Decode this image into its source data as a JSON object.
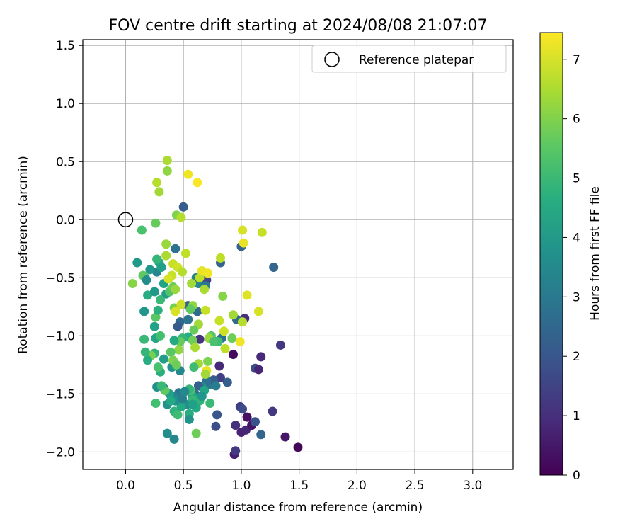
{
  "chart_data": {
    "type": "scatter",
    "title": "FOV centre drift starting at 2024/08/08 21:07:07",
    "xlabel": "Angular distance from reference (arcmin)",
    "ylabel": "Rotation from reference (arcmin)",
    "xlim": [
      -0.37,
      3.35
    ],
    "ylim": [
      -2.15,
      1.55
    ],
    "xticks": [
      0.0,
      0.5,
      1.0,
      1.5,
      2.0,
      2.5,
      3.0
    ],
    "xtick_labels": [
      "0.0",
      "0.5",
      "1.0",
      "1.5",
      "2.0",
      "2.5",
      "3.0"
    ],
    "yticks": [
      -2.0,
      -1.5,
      -1.0,
      -0.5,
      0.0,
      0.5,
      1.0,
      1.5
    ],
    "ytick_labels": [
      "−2.0",
      "−1.5",
      "−1.0",
      "−0.5",
      "0.0",
      "0.5",
      "1.0",
      "1.5"
    ],
    "grid": true,
    "legend": {
      "position": "top-right",
      "entries": [
        "Reference platepar"
      ]
    },
    "reference_point": {
      "x": 0.0,
      "y": 0.0,
      "label": "Reference platepar"
    },
    "colorbar": {
      "label": "Hours from first FF file",
      "colormap": "viridis",
      "range": [
        0,
        7.45
      ],
      "ticks": [
        0,
        1,
        2,
        3,
        4,
        5,
        6,
        7
      ],
      "tick_labels": [
        "0",
        "1",
        "2",
        "3",
        "4",
        "5",
        "6",
        "7"
      ]
    },
    "points": [
      {
        "x": 0.94,
        "y": -2.02,
        "h": 0.6
      },
      {
        "x": 0.95,
        "y": -1.99,
        "h": 1.2
      },
      {
        "x": 1.49,
        "y": -1.96,
        "h": 0.1
      },
      {
        "x": 1.38,
        "y": -1.87,
        "h": 0.5
      },
      {
        "x": 1.0,
        "y": -1.83,
        "h": 0.7
      },
      {
        "x": 1.04,
        "y": -1.81,
        "h": 0.8
      },
      {
        "x": 0.95,
        "y": -1.77,
        "h": 1.0
      },
      {
        "x": 1.09,
        "y": -1.77,
        "h": 0.4
      },
      {
        "x": 1.12,
        "y": -1.74,
        "h": 1.9
      },
      {
        "x": 1.05,
        "y": -1.7,
        "h": 0.3
      },
      {
        "x": 0.99,
        "y": -1.61,
        "h": 1.3
      },
      {
        "x": 1.01,
        "y": -1.63,
        "h": 1.7
      },
      {
        "x": 1.27,
        "y": -1.65,
        "h": 1.2
      },
      {
        "x": 1.17,
        "y": -1.85,
        "h": 2.4
      },
      {
        "x": 0.78,
        "y": -1.78,
        "h": 1.8
      },
      {
        "x": 0.79,
        "y": -1.68,
        "h": 2.0
      },
      {
        "x": 0.88,
        "y": -1.4,
        "h": 2.2
      },
      {
        "x": 0.82,
        "y": -1.36,
        "h": 1.4
      },
      {
        "x": 0.81,
        "y": -1.26,
        "h": 0.9
      },
      {
        "x": 1.12,
        "y": -1.28,
        "h": 1.8
      },
      {
        "x": 1.15,
        "y": -1.29,
        "h": 0.8
      },
      {
        "x": 1.17,
        "y": -1.18,
        "h": 0.9
      },
      {
        "x": 1.34,
        "y": -1.08,
        "h": 1.2
      },
      {
        "x": 0.93,
        "y": -1.16,
        "h": 0.2
      },
      {
        "x": 1.03,
        "y": -0.85,
        "h": 1.0
      },
      {
        "x": 0.96,
        "y": -0.86,
        "h": 2.6
      },
      {
        "x": 1.28,
        "y": -0.41,
        "h": 2.4
      },
      {
        "x": 1.0,
        "y": -0.23,
        "h": 2.3
      },
      {
        "x": 0.82,
        "y": -0.37,
        "h": 2.4
      },
      {
        "x": 0.7,
        "y": -0.52,
        "h": 1.5
      },
      {
        "x": 0.64,
        "y": -1.03,
        "h": 1.1
      },
      {
        "x": 0.74,
        "y": -1.02,
        "h": 0.6
      },
      {
        "x": 0.83,
        "y": -1.02,
        "h": 2.7
      },
      {
        "x": 0.79,
        "y": -1.05,
        "h": 3.6
      },
      {
        "x": 0.74,
        "y": -1.0,
        "h": 5.5
      },
      {
        "x": 0.5,
        "y": 0.11,
        "h": 2.2
      },
      {
        "x": 0.43,
        "y": -0.25,
        "h": 2.8
      },
      {
        "x": 0.54,
        "y": -0.74,
        "h": 2.2
      },
      {
        "x": 0.62,
        "y": -0.79,
        "h": 2.6
      },
      {
        "x": 0.47,
        "y": -0.88,
        "h": 2.5
      },
      {
        "x": 0.54,
        "y": -0.86,
        "h": 2.9
      },
      {
        "x": 0.45,
        "y": -0.92,
        "h": 2.1
      },
      {
        "x": 0.63,
        "y": -0.55,
        "h": 3.4
      },
      {
        "x": 0.69,
        "y": -0.57,
        "h": 3.0
      },
      {
        "x": 0.61,
        "y": -0.5,
        "h": 3.3
      },
      {
        "x": 0.73,
        "y": -1.42,
        "h": 3.0
      },
      {
        "x": 0.76,
        "y": -1.38,
        "h": 2.2
      },
      {
        "x": 0.78,
        "y": -1.43,
        "h": 3.1
      },
      {
        "x": 0.7,
        "y": -1.39,
        "h": 2.8
      },
      {
        "x": 0.66,
        "y": -1.44,
        "h": 3.6
      },
      {
        "x": 0.6,
        "y": -1.5,
        "h": 2.7
      },
      {
        "x": 0.63,
        "y": -1.43,
        "h": 2.3
      },
      {
        "x": 0.58,
        "y": -1.52,
        "h": 4.3
      },
      {
        "x": 0.62,
        "y": -1.57,
        "h": 3.2
      },
      {
        "x": 0.53,
        "y": -1.59,
        "h": 3.7
      },
      {
        "x": 0.55,
        "y": -1.67,
        "h": 4.6
      },
      {
        "x": 0.55,
        "y": -1.72,
        "h": 3.8
      },
      {
        "x": 0.46,
        "y": -1.49,
        "h": 2.9
      },
      {
        "x": 0.42,
        "y": -1.52,
        "h": 3.3
      },
      {
        "x": 0.48,
        "y": -1.61,
        "h": 4.5
      },
      {
        "x": 0.47,
        "y": -1.3,
        "h": 3.5
      },
      {
        "x": 0.4,
        "y": -1.27,
        "h": 3.9
      },
      {
        "x": 0.33,
        "y": -1.2,
        "h": 4.1
      },
      {
        "x": 0.27,
        "y": -1.44,
        "h": 3.7
      },
      {
        "x": 0.33,
        "y": -1.45,
        "h": 3.0
      },
      {
        "x": 0.38,
        "y": -1.5,
        "h": 4.2
      },
      {
        "x": 0.36,
        "y": -1.59,
        "h": 3.8
      },
      {
        "x": 0.36,
        "y": -1.84,
        "h": 3.6
      },
      {
        "x": 0.42,
        "y": -1.89,
        "h": 3.4
      },
      {
        "x": 0.42,
        "y": -1.65,
        "h": 4.8
      },
      {
        "x": 0.45,
        "y": -1.68,
        "h": 5.1
      },
      {
        "x": 0.61,
        "y": -1.84,
        "h": 5.8
      },
      {
        "x": 0.58,
        "y": -1.55,
        "h": 4.9
      },
      {
        "x": 0.56,
        "y": -1.47,
        "h": 5.4
      },
      {
        "x": 0.26,
        "y": -1.58,
        "h": 5.2
      },
      {
        "x": 0.34,
        "y": -1.47,
        "h": 5.6
      },
      {
        "x": 0.31,
        "y": -1.43,
        "h": 5.0
      },
      {
        "x": 0.3,
        "y": -1.31,
        "h": 4.7
      },
      {
        "x": 0.28,
        "y": -1.27,
        "h": 5.3
      },
      {
        "x": 0.25,
        "y": -1.15,
        "h": 4.8
      },
      {
        "x": 0.22,
        "y": -1.17,
        "h": 5.9
      },
      {
        "x": 0.19,
        "y": -1.21,
        "h": 4.6
      },
      {
        "x": 0.17,
        "y": -1.14,
        "h": 4.9
      },
      {
        "x": 0.16,
        "y": -1.03,
        "h": 5.0
      },
      {
        "x": 0.26,
        "y": -1.02,
        "h": 4.4
      },
      {
        "x": 0.3,
        "y": -1.0,
        "h": 5.2
      },
      {
        "x": 0.25,
        "y": -0.92,
        "h": 4.3
      },
      {
        "x": 0.26,
        "y": -0.84,
        "h": 5.5
      },
      {
        "x": 0.28,
        "y": -0.78,
        "h": 4.7
      },
      {
        "x": 0.16,
        "y": -0.79,
        "h": 3.9
      },
      {
        "x": 0.19,
        "y": -0.65,
        "h": 4.6
      },
      {
        "x": 0.25,
        "y": -0.62,
        "h": 4.0
      },
      {
        "x": 0.33,
        "y": -0.55,
        "h": 4.3
      },
      {
        "x": 0.35,
        "y": -0.64,
        "h": 4.1
      },
      {
        "x": 0.3,
        "y": -0.69,
        "h": 5.0
      },
      {
        "x": 0.17,
        "y": -0.5,
        "h": 4.4
      },
      {
        "x": 0.15,
        "y": -0.48,
        "h": 5.6
      },
      {
        "x": 0.1,
        "y": -0.37,
        "h": 4.0
      },
      {
        "x": 0.18,
        "y": -0.52,
        "h": 3.6
      },
      {
        "x": 0.27,
        "y": -0.45,
        "h": 3.4
      },
      {
        "x": 0.29,
        "y": -0.37,
        "h": 4.5
      },
      {
        "x": 0.27,
        "y": -0.34,
        "h": 4.9
      },
      {
        "x": 0.31,
        "y": -0.41,
        "h": 4.2
      },
      {
        "x": 0.21,
        "y": -0.43,
        "h": 3.9
      },
      {
        "x": 0.06,
        "y": -0.55,
        "h": 6.1
      },
      {
        "x": 0.14,
        "y": -0.09,
        "h": 5.3
      },
      {
        "x": 0.26,
        "y": -0.03,
        "h": 5.7
      },
      {
        "x": 0.44,
        "y": 0.04,
        "h": 6.0
      },
      {
        "x": 0.48,
        "y": 0.02,
        "h": 6.6
      },
      {
        "x": 0.36,
        "y": 0.51,
        "h": 6.5
      },
      {
        "x": 0.36,
        "y": 0.42,
        "h": 6.2
      },
      {
        "x": 0.27,
        "y": 0.32,
        "h": 6.6
      },
      {
        "x": 0.29,
        "y": 0.24,
        "h": 6.4
      },
      {
        "x": 0.54,
        "y": 0.39,
        "h": 7.3
      },
      {
        "x": 0.62,
        "y": 0.32,
        "h": 7.4
      },
      {
        "x": 0.35,
        "y": -0.21,
        "h": 6.3
      },
      {
        "x": 0.35,
        "y": -0.31,
        "h": 6.5
      },
      {
        "x": 0.52,
        "y": -0.29,
        "h": 6.7
      },
      {
        "x": 0.41,
        "y": -0.38,
        "h": 6.8
      },
      {
        "x": 0.45,
        "y": -0.41,
        "h": 6.9
      },
      {
        "x": 0.49,
        "y": -0.45,
        "h": 6.6
      },
      {
        "x": 0.4,
        "y": -0.48,
        "h": 6.8
      },
      {
        "x": 0.37,
        "y": -0.51,
        "h": 7.0
      },
      {
        "x": 0.38,
        "y": -0.62,
        "h": 5.4
      },
      {
        "x": 0.41,
        "y": -0.58,
        "h": 5.8
      },
      {
        "x": 0.43,
        "y": -0.6,
        "h": 6.3
      },
      {
        "x": 0.57,
        "y": -0.55,
        "h": 6.4
      },
      {
        "x": 0.64,
        "y": -0.5,
        "h": 6.7
      },
      {
        "x": 0.66,
        "y": -0.44,
        "h": 7.2
      },
      {
        "x": 0.71,
        "y": -0.46,
        "h": 7.3
      },
      {
        "x": 0.68,
        "y": -0.6,
        "h": 6.5
      },
      {
        "x": 0.58,
        "y": -0.74,
        "h": 6.2
      },
      {
        "x": 0.42,
        "y": -0.76,
        "h": 5.9
      },
      {
        "x": 0.43,
        "y": -0.79,
        "h": 7.0
      },
      {
        "x": 0.48,
        "y": -0.73,
        "h": 6.9
      },
      {
        "x": 0.56,
        "y": -0.77,
        "h": 5.6
      },
      {
        "x": 0.69,
        "y": -0.78,
        "h": 6.8
      },
      {
        "x": 0.81,
        "y": -0.87,
        "h": 6.8
      },
      {
        "x": 0.93,
        "y": -0.82,
        "h": 6.4
      },
      {
        "x": 0.84,
        "y": -0.66,
        "h": 6.1
      },
      {
        "x": 0.82,
        "y": -0.33,
        "h": 6.7
      },
      {
        "x": 1.01,
        "y": -0.09,
        "h": 7.0
      },
      {
        "x": 1.02,
        "y": -0.2,
        "h": 7.2
      },
      {
        "x": 1.18,
        "y": -0.11,
        "h": 6.8
      },
      {
        "x": 1.05,
        "y": -0.65,
        "h": 7.1
      },
      {
        "x": 1.15,
        "y": -0.79,
        "h": 7.0
      },
      {
        "x": 1.01,
        "y": -0.88,
        "h": 6.6
      },
      {
        "x": 0.85,
        "y": -0.96,
        "h": 6.9
      },
      {
        "x": 0.92,
        "y": -1.02,
        "h": 5.8
      },
      {
        "x": 0.99,
        "y": -1.05,
        "h": 7.3
      },
      {
        "x": 0.86,
        "y": -1.11,
        "h": 6.7
      },
      {
        "x": 0.8,
        "y": -1.05,
        "h": 5.1
      },
      {
        "x": 0.63,
        "y": -0.9,
        "h": 6.4
      },
      {
        "x": 0.59,
        "y": -0.95,
        "h": 5.7
      },
      {
        "x": 0.54,
        "y": -1.01,
        "h": 4.6
      },
      {
        "x": 0.49,
        "y": -1.02,
        "h": 4.9
      },
      {
        "x": 0.47,
        "y": -1.05,
        "h": 5.7
      },
      {
        "x": 0.42,
        "y": -1.04,
        "h": 4.5
      },
      {
        "x": 0.46,
        "y": -1.12,
        "h": 6.2
      },
      {
        "x": 0.39,
        "y": -1.14,
        "h": 5.5
      },
      {
        "x": 0.41,
        "y": -1.21,
        "h": 6.0
      },
      {
        "x": 0.44,
        "y": -1.25,
        "h": 5.8
      },
      {
        "x": 0.58,
        "y": -1.04,
        "h": 5.8
      },
      {
        "x": 0.6,
        "y": -1.1,
        "h": 6.5
      },
      {
        "x": 0.63,
        "y": -1.24,
        "h": 6.4
      },
      {
        "x": 0.59,
        "y": -1.27,
        "h": 5.1
      },
      {
        "x": 0.7,
        "y": -1.3,
        "h": 7.2
      },
      {
        "x": 0.69,
        "y": -1.33,
        "h": 6.4
      },
      {
        "x": 0.71,
        "y": -1.22,
        "h": 6.0
      },
      {
        "x": 0.72,
        "y": -1.02,
        "h": 6.3
      },
      {
        "x": 0.76,
        "y": -1.05,
        "h": 5.3
      },
      {
        "x": 0.55,
        "y": -1.46,
        "h": 4.9
      },
      {
        "x": 0.68,
        "y": -1.47,
        "h": 4.4
      },
      {
        "x": 0.73,
        "y": -1.58,
        "h": 5.0
      },
      {
        "x": 0.64,
        "y": -1.56,
        "h": 4.8
      },
      {
        "x": 0.61,
        "y": -1.62,
        "h": 4.5
      },
      {
        "x": 0.66,
        "y": -1.52,
        "h": 3.9
      },
      {
        "x": 0.58,
        "y": -1.59,
        "h": 4.2
      },
      {
        "x": 0.43,
        "y": -1.56,
        "h": 3.7
      },
      {
        "x": 0.49,
        "y": -1.54,
        "h": 3.2
      },
      {
        "x": 0.39,
        "y": -1.56,
        "h": 4.5
      },
      {
        "x": 0.51,
        "y": -1.48,
        "h": 3.5
      }
    ]
  }
}
